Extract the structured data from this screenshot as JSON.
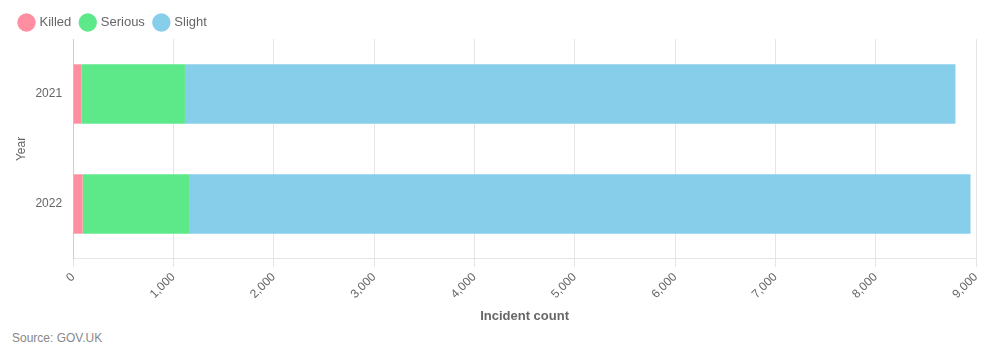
{
  "chart_data": {
    "type": "bar",
    "orientation": "horizontal",
    "stacked": true,
    "categories": [
      "2022",
      "2021"
    ],
    "series": [
      {
        "name": "Killed",
        "color": "#FF8FA0",
        "values": [
          95,
          85
        ]
      },
      {
        "name": "Serious",
        "color": "#5DE88A",
        "values": [
          1060,
          1030
        ]
      },
      {
        "name": "Slight",
        "color": "#87CEEB",
        "values": [
          7790,
          7680
        ]
      }
    ],
    "xlabel": "Incident count",
    "ylabel": "Year",
    "xlim": [
      0,
      9000
    ],
    "xticks": [
      0,
      {
        "value": 1000,
        "label": "1,000"
      },
      {
        "value": 2000,
        "label": "2,000"
      },
      {
        "value": 3000,
        "label": "3,000"
      },
      {
        "value": 4000,
        "label": "4,000"
      },
      {
        "value": 5000,
        "label": "5,000"
      },
      {
        "value": 6000,
        "label": "6,000"
      },
      {
        "value": 7000,
        "label": "7,000"
      },
      {
        "value": 8000,
        "label": "8,000"
      },
      {
        "value": 9000,
        "label": "9,000"
      }
    ],
    "grid": true,
    "legend": "upper left",
    "annotations": [
      "Source: GOV.UK"
    ]
  }
}
